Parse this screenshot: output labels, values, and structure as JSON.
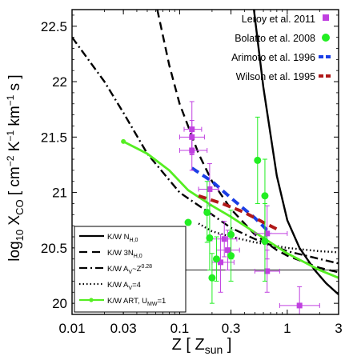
{
  "chart_data": {
    "type": "scatter",
    "x_scale": "log",
    "xlim": [
      0.01,
      3
    ],
    "ylim": [
      19.9,
      22.65
    ],
    "x_ticks": [
      {
        "value": 0.01,
        "label": "0.01"
      },
      {
        "value": 0.03,
        "label": "0.03"
      },
      {
        "value": 0.1,
        "label": "0.1"
      },
      {
        "value": 0.3,
        "label": "0.3"
      },
      {
        "value": 1,
        "label": "1"
      },
      {
        "value": 3,
        "label": "3"
      }
    ],
    "y_ticks": [
      {
        "value": 20,
        "label": "20"
      },
      {
        "value": 20.5,
        "label": "20.5"
      },
      {
        "value": 21,
        "label": "21"
      },
      {
        "value": 21.5,
        "label": "21.5"
      },
      {
        "value": 22,
        "label": "22"
      },
      {
        "value": 22.5,
        "label": "22.5"
      }
    ],
    "xlabel": "Z [ Z_sun ]",
    "ylabel": "log10 XCO [ cm^-2 K^-1 km^-1 s ]",
    "reference_line_y": 20.3,
    "points_legend": [
      {
        "name": "Leroy et al. 2011",
        "color": "#c040e0",
        "marker": "square"
      },
      {
        "name": "Bolatto et al. 2008",
        "color": "#22ee22",
        "marker": "circle"
      },
      {
        "name": "Arimoto et al. 1996",
        "color": "#1a3ee6",
        "style": "dash"
      },
      {
        "name": "Wilson et al. 1995",
        "color": "#b01818",
        "style": "dash"
      }
    ],
    "series": [
      {
        "name": "Leroy et al. 2011",
        "color": "#c040e0",
        "points": [
          {
            "x": 0.13,
            "y": 21.57,
            "xerr": [
              0.11,
              0.16
            ],
            "yerr": [
              21.34,
              21.82
            ]
          },
          {
            "x": 0.13,
            "y": 21.5,
            "xerr": [
              0.1,
              0.17
            ],
            "yerr": [
              21.35,
              21.65
            ]
          },
          {
            "x": 0.13,
            "y": 21.38,
            "xerr": [
              0.1,
              0.18
            ],
            "yerr": [
              21.2,
              21.58
            ]
          },
          {
            "x": 0.19,
            "y": 21.03,
            "xerr": [
              0.15,
              0.23
            ],
            "yerr": [
              20.8,
              21.26
            ]
          },
          {
            "x": 0.24,
            "y": 20.37,
            "xerr": [
              0.2,
              0.32
            ],
            "yerr": [
              20.1,
              20.62
            ]
          },
          {
            "x": 0.26,
            "y": 20.58,
            "xerr": [
              0.2,
              0.34
            ],
            "yerr": [
              20.42,
              20.74
            ]
          },
          {
            "x": 0.28,
            "y": 20.48,
            "xerr": [
              0.22,
              0.36
            ],
            "yerr": [
              20.3,
              20.66
            ]
          },
          {
            "x": 0.65,
            "y": 20.63,
            "xerr": [
              0.5,
              1.0
            ],
            "yerr": [
              20.4,
              20.88
            ]
          },
          {
            "x": 0.65,
            "y": 20.29,
            "xerr": [
              0.5,
              0.85
            ],
            "yerr": [
              20.1,
              20.48
            ]
          },
          {
            "x": 1.3,
            "y": 19.98,
            "xerr": [
              0.85,
              2.0
            ],
            "yerr": [
              19.9,
              20.15
            ]
          }
        ]
      },
      {
        "name": "Bolatto et al. 2008",
        "color": "#22ee22",
        "points": [
          {
            "x": 0.12,
            "y": 20.73,
            "xerr": [
              0.12,
              0.12
            ],
            "yerr": [
              20.73,
              20.73
            ]
          },
          {
            "x": 0.18,
            "y": 20.82,
            "xerr": [
              0.18,
              0.18
            ],
            "yerr": [
              20.55,
              21.1
            ]
          },
          {
            "x": 0.19,
            "y": 20.59,
            "xerr": [
              0.19,
              0.19
            ],
            "yerr": [
              20.3,
              20.88
            ]
          },
          {
            "x": 0.2,
            "y": 20.23,
            "xerr": [
              0.2,
              0.2
            ],
            "yerr": [
              20.0,
              20.45
            ]
          },
          {
            "x": 0.22,
            "y": 20.4,
            "xerr": [
              0.22,
              0.22
            ],
            "yerr": [
              20.2,
              20.6
            ]
          },
          {
            "x": 0.3,
            "y": 20.43,
            "xerr": [
              0.3,
              0.3
            ],
            "yerr": [
              20.2,
              20.66
            ]
          },
          {
            "x": 0.3,
            "y": 20.62,
            "xerr": [
              0.3,
              0.3
            ],
            "yerr": [
              20.4,
              20.84
            ]
          },
          {
            "x": 0.53,
            "y": 21.29,
            "xerr": [
              0.53,
              0.53
            ],
            "yerr": [
              20.9,
              21.68
            ]
          },
          {
            "x": 0.62,
            "y": 20.97,
            "xerr": [
              0.62,
              0.62
            ],
            "yerr": [
              20.6,
              21.3
            ]
          },
          {
            "x": 0.62,
            "y": 20.56,
            "xerr": [
              0.62,
              0.62
            ],
            "yerr": [
              20.2,
              20.9
            ]
          }
        ]
      }
    ],
    "models": [
      {
        "name": "K/W N_H,0",
        "style": "solid",
        "color": "#000000",
        "points": [
          [
            0.49,
            22.65
          ],
          [
            0.6,
            21.95
          ],
          [
            0.8,
            21.15
          ],
          [
            1.0,
            20.75
          ],
          [
            1.3,
            20.5
          ],
          [
            1.8,
            20.3
          ],
          [
            2.3,
            20.18
          ],
          [
            3.0,
            20.08
          ]
        ]
      },
      {
        "name": "K/W 3N_H,0",
        "style": "dash",
        "color": "#000000",
        "points": [
          [
            0.062,
            22.65
          ],
          [
            0.08,
            22.15
          ],
          [
            0.1,
            21.8
          ],
          [
            0.15,
            21.35
          ],
          [
            0.2,
            21.1
          ],
          [
            0.3,
            20.85
          ],
          [
            0.5,
            20.62
          ],
          [
            0.8,
            20.48
          ],
          [
            1.0,
            20.43
          ],
          [
            2.0,
            20.32
          ],
          [
            3.0,
            20.28
          ]
        ]
      },
      {
        "name": "K/W A_V~Z^0.28",
        "style": "dashdot",
        "color": "#000000",
        "points": [
          [
            0.01,
            22.4
          ],
          [
            0.02,
            22.0
          ],
          [
            0.03,
            21.72
          ],
          [
            0.05,
            21.35
          ],
          [
            0.1,
            21.0
          ],
          [
            0.2,
            20.8
          ],
          [
            0.3,
            20.68
          ],
          [
            0.5,
            20.58
          ],
          [
            1.0,
            20.47
          ],
          [
            2.0,
            20.4
          ],
          [
            3.0,
            20.36
          ]
        ]
      },
      {
        "name": "K/W A_V=4",
        "style": "dot",
        "color": "#000000",
        "points": [
          [
            0.15,
            20.72
          ],
          [
            0.2,
            20.65
          ],
          [
            0.3,
            20.6
          ],
          [
            0.5,
            20.55
          ],
          [
            1.0,
            20.5
          ],
          [
            2.0,
            20.47
          ],
          [
            3.0,
            20.46
          ]
        ]
      },
      {
        "name": "K/W ART, U_MW=1",
        "style": "solid-marker",
        "color": "#55ee22",
        "points": [
          [
            0.03,
            21.46
          ],
          [
            0.05,
            21.35
          ],
          [
            0.08,
            21.2
          ],
          [
            0.12,
            21.02
          ],
          [
            0.2,
            20.88
          ],
          [
            0.3,
            20.78
          ],
          [
            0.5,
            20.64
          ],
          [
            1.0,
            20.45
          ],
          [
            2.0,
            20.3
          ],
          [
            3.0,
            20.23
          ]
        ]
      },
      {
        "name": "Arimoto et al. 1996",
        "style": "dash",
        "color": "#1a3ee6",
        "points": [
          [
            0.13,
            21.22
          ],
          [
            0.2,
            21.1
          ],
          [
            0.3,
            20.95
          ],
          [
            0.5,
            20.77
          ],
          [
            0.7,
            20.63
          ]
        ]
      },
      {
        "name": "Wilson et al. 1995",
        "style": "dash",
        "color": "#b01818",
        "points": [
          [
            0.15,
            20.97
          ],
          [
            0.25,
            20.9
          ],
          [
            0.4,
            20.82
          ],
          [
            0.6,
            20.73
          ],
          [
            0.8,
            20.67
          ]
        ]
      }
    ],
    "model_legend": [
      {
        "label": "K/W N",
        "sub": "H,0",
        "style": "solid"
      },
      {
        "label": "K/W 3N",
        "sub": "H,0",
        "style": "dash"
      },
      {
        "label": "K/W A",
        "sub": "V",
        "suffix": "~Z",
        "sup": "0.28",
        "style": "dashdot"
      },
      {
        "label": "K/W A",
        "sub": "V",
        "suffix": "=4",
        "style": "dot"
      },
      {
        "label": "K/W ART, U",
        "sub": "MW",
        "suffix": "=1",
        "style": "solid-marker"
      }
    ],
    "axis_title_x": {
      "main": "Z [ Z",
      "sub": "sun",
      "tail": " ]"
    },
    "axis_title_y": {
      "pre": "log",
      "sub1": "10",
      "mid": " X",
      "sub2": "CO",
      "mid2": " [ cm",
      "sup1": "−2",
      "mid3": " K",
      "sup2": "−1",
      "mid4": " km",
      "sup3": "−1",
      "tail": " s ]"
    }
  }
}
